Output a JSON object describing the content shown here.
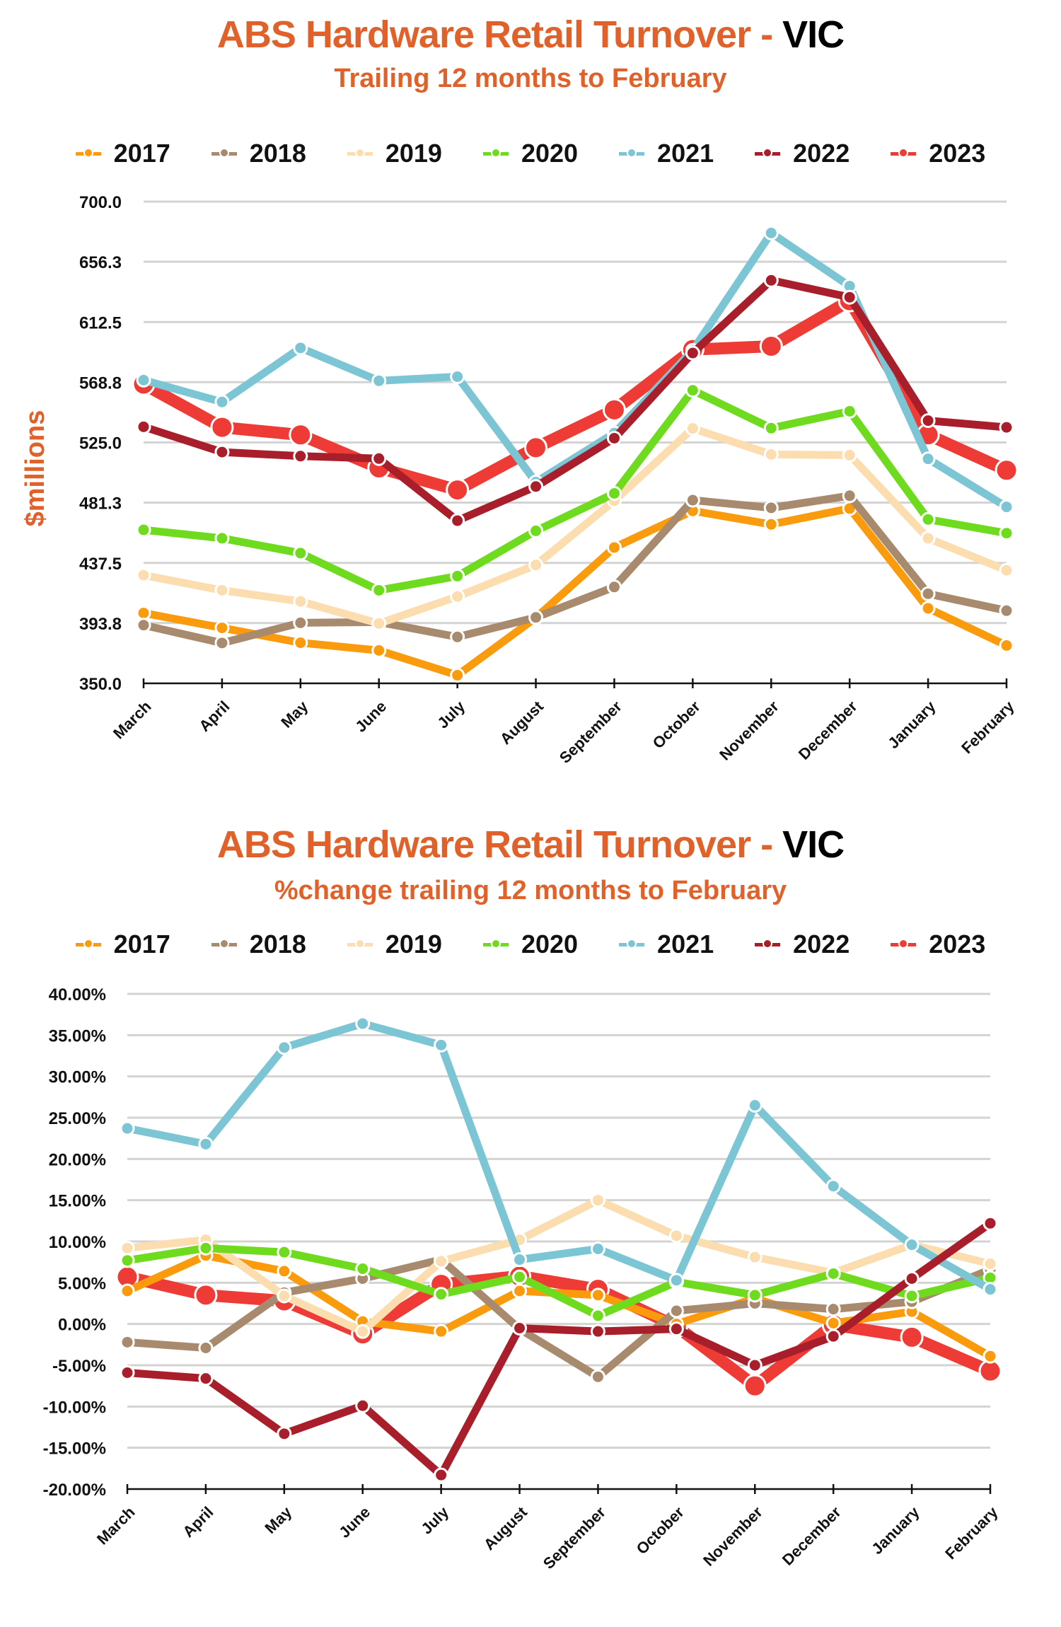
{
  "chart_data": [
    {
      "type": "line",
      "title": "ABS Hardware Retail Turnover - ",
      "title_region": "VIC",
      "subtitle": "Trailing 12 months to February",
      "xlabel": "",
      "ylabel": "$millions",
      "ylim": [
        350,
        700
      ],
      "yticks": [
        "700.0",
        "656.3",
        "612.5",
        "568.8",
        "525.0",
        "481.3",
        "437.5",
        "393.8",
        "350.0"
      ],
      "grid": true,
      "legend_position": "top",
      "categories": [
        "March",
        "April",
        "May",
        "June",
        "July",
        "August",
        "September",
        "October",
        "November",
        "December",
        "January",
        "February"
      ],
      "series": [
        {
          "name": "2017",
          "color": "#F99B0C",
          "values": [
            401.1,
            390.3,
            379.5,
            373.9,
            355.9,
            397.7,
            448.7,
            475.3,
            465.5,
            477.0,
            404.5,
            377.5
          ]
        },
        {
          "name": "2018",
          "color": "#A88A6E",
          "values": [
            392.3,
            379.3,
            394.0,
            394.5,
            383.7,
            397.9,
            420.0,
            483.1,
            477.5,
            486.3,
            415.1,
            402.8
          ]
        },
        {
          "name": "2019",
          "color": "#FBDDB0",
          "values": [
            428.6,
            417.6,
            409.5,
            393.5,
            413.1,
            436.0,
            482.6,
            535.2,
            516.3,
            515.8,
            455.4,
            432.1
          ]
        },
        {
          "name": "2020",
          "color": "#6FDB1E",
          "values": [
            461.5,
            455.4,
            444.6,
            417.6,
            427.9,
            460.8,
            488.0,
            562.9,
            535.4,
            547.7,
            469.1,
            459.1
          ]
        },
        {
          "name": "2021",
          "color": "#7CC5D5",
          "values": [
            570.3,
            554.4,
            593.7,
            569.8,
            572.8,
            496.2,
            531.8,
            591.9,
            677.2,
            638.6,
            513.1,
            478.2
          ]
        },
        {
          "name": "2022",
          "color": "#A81E2A",
          "values": [
            536.4,
            518.0,
            515.1,
            513.3,
            468.2,
            493.0,
            528.1,
            590.0,
            642.8,
            630.5,
            540.9,
            536.0
          ]
        },
        {
          "name": "2023",
          "color": "#EE3B36",
          "values": [
            567.4,
            536.0,
            530.5,
            506.5,
            490.5,
            521.2,
            548.7,
            592.5,
            594.9,
            628.0,
            530.6,
            504.8
          ]
        }
      ]
    },
    {
      "type": "line",
      "title": "ABS Hardware Retail Turnover - ",
      "title_region": "VIC",
      "subtitle": "%change trailing 12 months to February",
      "xlabel": "",
      "ylabel": "",
      "ylim": [
        -20,
        40
      ],
      "yticks": [
        "40.00%",
        "35.00%",
        "30.00%",
        "25.00%",
        "20.00%",
        "15.00%",
        "10.00%",
        "5.00%",
        "0.00%",
        "-5.00%",
        "-10.00%",
        "-15.00%",
        "-20.00%"
      ],
      "grid": true,
      "legend_position": "top",
      "categories": [
        "March",
        "April",
        "May",
        "June",
        "July",
        "August",
        "September",
        "October",
        "November",
        "December",
        "January",
        "February"
      ],
      "series": [
        {
          "name": "2017",
          "color": "#F99B0C",
          "values": [
            4.0,
            8.3,
            6.4,
            0.3,
            -0.9,
            4.0,
            3.5,
            0.0,
            3.1,
            0.1,
            1.5,
            -3.9
          ]
        },
        {
          "name": "2018",
          "color": "#A88A6E",
          "values": [
            -2.2,
            -2.9,
            3.8,
            5.5,
            7.8,
            -0.6,
            -6.4,
            1.6,
            2.5,
            1.8,
            2.7,
            6.6
          ]
        },
        {
          "name": "2019",
          "color": "#FBDDB0",
          "values": [
            9.2,
            10.2,
            3.4,
            -0.9,
            7.6,
            10.2,
            15.0,
            10.7,
            8.1,
            6.2,
            9.6,
            7.3
          ]
        },
        {
          "name": "2020",
          "color": "#6FDB1E",
          "values": [
            7.7,
            9.2,
            8.7,
            6.7,
            3.6,
            5.7,
            1.0,
            5.1,
            3.5,
            6.1,
            3.4,
            5.6
          ]
        },
        {
          "name": "2021",
          "color": "#7CC5D5",
          "values": [
            23.7,
            21.8,
            33.5,
            36.4,
            33.8,
            7.8,
            9.1,
            5.3,
            26.5,
            16.7,
            9.6,
            4.2
          ]
        },
        {
          "name": "2022",
          "color": "#A81E2A",
          "values": [
            -5.9,
            -6.6,
            -13.3,
            -9.9,
            -18.3,
            -0.5,
            -0.9,
            -0.6,
            -5.0,
            -1.5,
            5.5,
            12.2
          ]
        },
        {
          "name": "2023",
          "color": "#EE3B36",
          "values": [
            5.7,
            3.5,
            2.8,
            -1.2,
            4.8,
            5.8,
            4.2,
            -0.3,
            -7.5,
            -0.1,
            -1.6,
            -5.7
          ]
        }
      ]
    }
  ]
}
